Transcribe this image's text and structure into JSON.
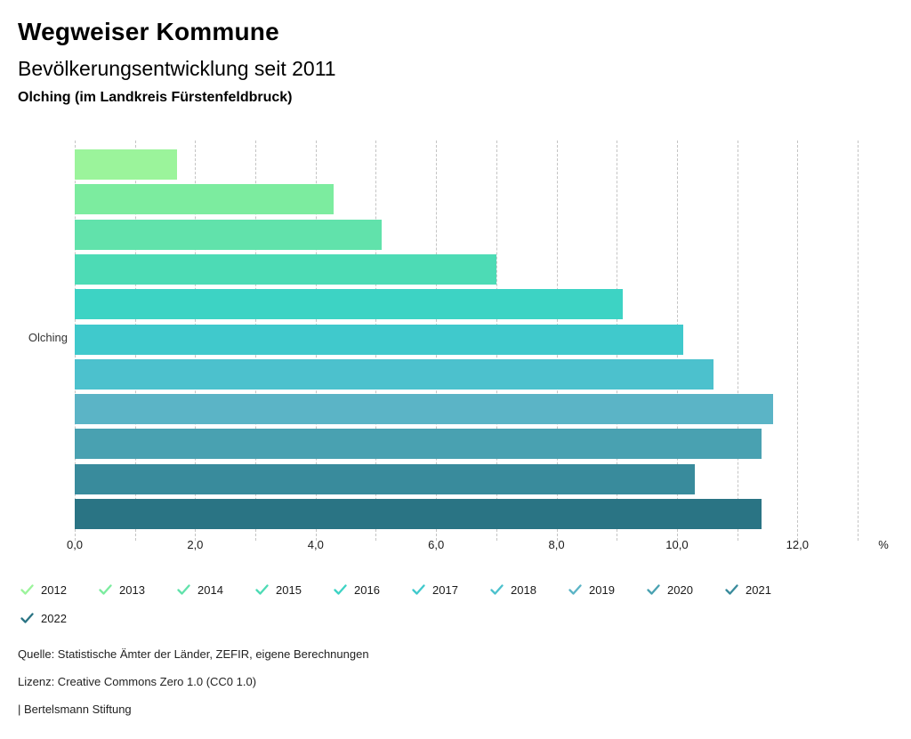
{
  "header": {
    "title": "Wegweiser Kommune",
    "subtitle": "Bevölkerungsentwicklung seit 2011",
    "location": "Olching (im Landkreis Fürstenfeldbruck)"
  },
  "chart_data": {
    "type": "bar",
    "orientation": "horizontal",
    "title": "Bevölkerungsentwicklung seit 2011",
    "group_label": "Olching",
    "categories": [
      "2012",
      "2013",
      "2014",
      "2015",
      "2016",
      "2017",
      "2018",
      "2019",
      "2020",
      "2021",
      "2022"
    ],
    "values": [
      1.7,
      4.3,
      5.1,
      7.0,
      9.1,
      10.1,
      10.6,
      11.6,
      11.4,
      10.3,
      11.4
    ],
    "colors": [
      "#9bf49b",
      "#7cec9f",
      "#61e2ab",
      "#4ddbb5",
      "#3dd3c4",
      "#40c9cc",
      "#4cc1cd",
      "#5bb4c6",
      "#49a1b1",
      "#398b9c",
      "#2a7484"
    ],
    "unit": "%",
    "xlabel": "%",
    "ylabel": "Olching",
    "xlim": [
      0,
      13
    ],
    "gridlines": [
      0,
      1,
      2,
      3,
      4,
      5,
      6,
      7,
      8,
      9,
      10,
      11,
      12,
      13
    ],
    "grid_style": "vertical-dashed",
    "x_ticks": [
      {
        "value": 0,
        "label": "0,0"
      },
      {
        "value": 2,
        "label": "2,0"
      },
      {
        "value": 4,
        "label": "4,0"
      },
      {
        "value": 6,
        "label": "6,0"
      },
      {
        "value": 8,
        "label": "8,0"
      },
      {
        "value": 10,
        "label": "10,0"
      },
      {
        "value": 12,
        "label": "12,0"
      }
    ],
    "legend_position": "bottom"
  },
  "legend": {
    "check_icon": "checkmark-icon",
    "items": [
      {
        "label": "2012",
        "color": "#9bf49b",
        "checked": true
      },
      {
        "label": "2013",
        "color": "#7cec9f",
        "checked": true
      },
      {
        "label": "2014",
        "color": "#61e2ab",
        "checked": true
      },
      {
        "label": "2015",
        "color": "#4ddbb5",
        "checked": true
      },
      {
        "label": "2016",
        "color": "#3dd3c4",
        "checked": true
      },
      {
        "label": "2017",
        "color": "#40c9cc",
        "checked": true
      },
      {
        "label": "2018",
        "color": "#4cc1cd",
        "checked": true
      },
      {
        "label": "2019",
        "color": "#5bb4c6",
        "checked": true
      },
      {
        "label": "2020",
        "color": "#49a1b1",
        "checked": true
      },
      {
        "label": "2021",
        "color": "#398b9c",
        "checked": true
      },
      {
        "label": "2022",
        "color": "#2a7484",
        "checked": true
      }
    ]
  },
  "footer": {
    "source_line": "Quelle: Statistische Ämter der Länder, ZEFIR, eigene Berechnungen",
    "license_line": "Lizenz: Creative Commons Zero 1.0 (CC0 1.0)",
    "attribution_line": "| Bertelsmann Stiftung"
  }
}
